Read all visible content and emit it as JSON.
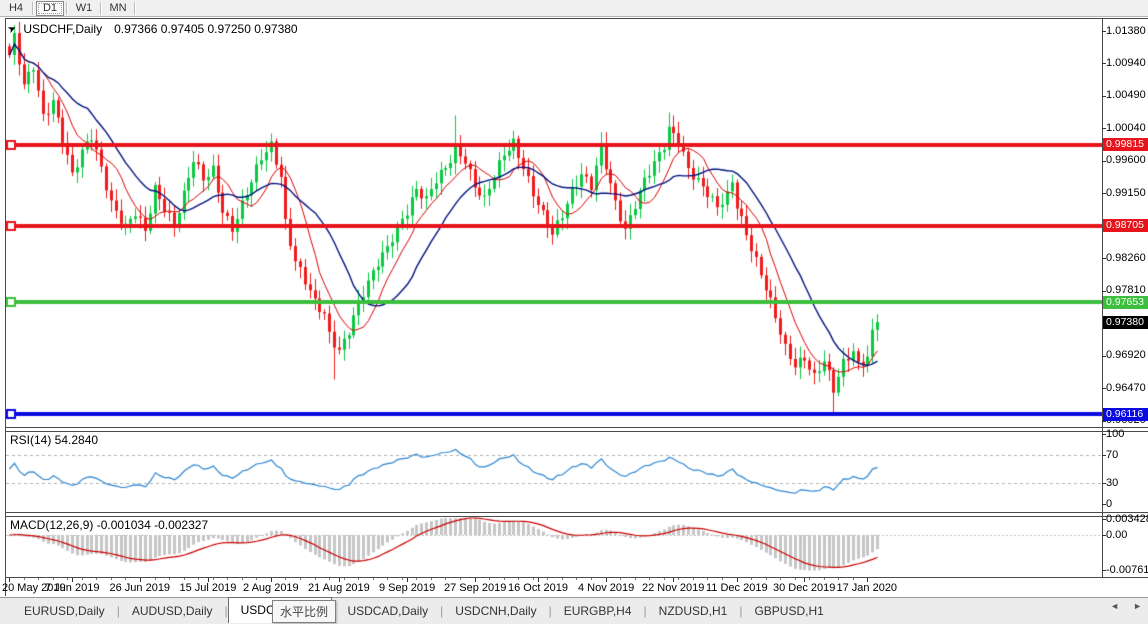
{
  "toolbar": {
    "timeframes": [
      {
        "label": "H4",
        "active": false
      },
      {
        "label": "D1",
        "active": true
      },
      {
        "label": "W1",
        "active": false
      },
      {
        "label": "MN",
        "active": false
      }
    ]
  },
  "chart": {
    "title": "USDCHF,Daily",
    "ohlc_text": "0.97366 0.97405 0.97250 0.97380",
    "cursor_icon": "➤",
    "price_axis_ticks": [
      "1.01380",
      "1.00940",
      "1.00490",
      "1.00040",
      "0.99600",
      "0.99150",
      "0.98260",
      "0.97810",
      "0.96920",
      "0.96470",
      "0.96020"
    ],
    "price_axis_tags": [
      {
        "text": "0.99815",
        "color": "#e8141b"
      },
      {
        "text": "0.98705",
        "color": "#e8141b"
      },
      {
        "text": "0.97653",
        "color": "#3cbf3c"
      },
      {
        "text": "0.97380",
        "color": "#000000"
      },
      {
        "text": "0.96116",
        "color": "#0a0ae0"
      }
    ]
  },
  "rsi_pane": {
    "label": "RSI(14) 54.2840",
    "axis_ticks": [
      "100",
      "70",
      "30",
      "0"
    ]
  },
  "macd_pane": {
    "label": "MACD(12,26,9) -0.001034 -0.002327",
    "axis_ticks": [
      "0.003428",
      "0.00",
      "-0.007615"
    ]
  },
  "time_axis": {
    "labels": [
      "20 May 2019",
      "7 Jun 2019",
      "26 Jun 2019",
      "15 Jul 2019",
      "2 Aug 2019",
      "21 Aug 2019",
      "9 Sep 2019",
      "27 Sep 2019",
      "16 Oct 2019",
      "4 Nov 2019",
      "22 Nov 2019",
      "11 Dec 2019",
      "30 Dec 2019",
      "17 Jan 2020"
    ]
  },
  "tabs": {
    "items": [
      {
        "label": "EURUSD,Daily",
        "active": false
      },
      {
        "label": "AUDUSD,Daily",
        "active": false
      },
      {
        "label": "USDCHF,Daily",
        "active": true
      },
      {
        "label": "USDCAD,Daily",
        "active": false
      },
      {
        "label": "USDCNH,Daily",
        "active": false
      },
      {
        "label": "EURGBP,H4",
        "active": false
      },
      {
        "label": "NZDUSD,H1",
        "active": false
      },
      {
        "label": "GBPUSD,H1",
        "active": false
      }
    ],
    "scroll_left_icon": "◄",
    "scroll_right_icon": "►"
  },
  "tooltip": {
    "text": "水平比例"
  },
  "chart_data": {
    "type": "candlestick",
    "symbol": "USDCHF",
    "timeframe": "Daily",
    "title": "USDCHF,Daily",
    "displayed_ohlc": {
      "open": 0.97366,
      "high": 0.97405,
      "low": 0.9725,
      "close": 0.9738
    },
    "y_axis": {
      "min": 0.9602,
      "max": 1.0138,
      "ticks": [
        1.0138,
        1.0094,
        1.0049,
        1.0004,
        0.996,
        0.9915,
        0.9826,
        0.9781,
        0.9692,
        0.9647,
        0.9602
      ]
    },
    "x_axis": {
      "tick_labels": [
        "20 May 2019",
        "7 Jun 2019",
        "26 Jun 2019",
        "15 Jul 2019",
        "2 Aug 2019",
        "21 Aug 2019",
        "9 Sep 2019",
        "27 Sep 2019",
        "16 Oct 2019",
        "4 Nov 2019",
        "22 Nov 2019",
        "11 Dec 2019",
        "30 Dec 2019",
        "17 Jan 2020"
      ],
      "tick_indices": [
        0,
        13,
        27,
        41,
        54,
        68,
        82,
        96,
        109,
        123,
        137,
        150,
        164,
        177
      ]
    },
    "num_candles": 180,
    "close_waypoints": [
      [
        0,
        1.0105
      ],
      [
        1,
        1.0128
      ],
      [
        3,
        1.006
      ],
      [
        5,
        1.0088
      ],
      [
        7,
        1.0022
      ],
      [
        9,
        1.0045
      ],
      [
        11,
        0.9992
      ],
      [
        13,
        0.9938
      ],
      [
        15,
        0.9968
      ],
      [
        17,
        0.9992
      ],
      [
        19,
        0.9952
      ],
      [
        21,
        0.9905
      ],
      [
        24,
        0.9868
      ],
      [
        26,
        0.9885
      ],
      [
        28,
        0.986
      ],
      [
        30,
        0.9922
      ],
      [
        32,
        0.9898
      ],
      [
        34,
        0.9875
      ],
      [
        36,
        0.9912
      ],
      [
        38,
        0.9958
      ],
      [
        40,
        0.9932
      ],
      [
        42,
        0.9948
      ],
      [
        44,
        0.9895
      ],
      [
        46,
        0.9868
      ],
      [
        48,
        0.9898
      ],
      [
        50,
        0.9928
      ],
      [
        52,
        0.9962
      ],
      [
        54,
        0.9982
      ],
      [
        56,
        0.9942
      ],
      [
        57,
        0.9878
      ],
      [
        59,
        0.9822
      ],
      [
        61,
        0.9792
      ],
      [
        63,
        0.9762
      ],
      [
        65,
        0.9748
      ],
      [
        66,
        0.9722
      ],
      [
        68,
        0.9702
      ],
      [
        70,
        0.9728
      ],
      [
        72,
        0.9762
      ],
      [
        74,
        0.9788
      ],
      [
        76,
        0.9818
      ],
      [
        78,
        0.9842
      ],
      [
        80,
        0.9872
      ],
      [
        82,
        0.9892
      ],
      [
        84,
        0.9918
      ],
      [
        86,
        0.9902
      ],
      [
        88,
        0.9932
      ],
      [
        90,
        0.9952
      ],
      [
        92,
        0.9978
      ],
      [
        94,
        0.9962
      ],
      [
        96,
        0.9922
      ],
      [
        98,
        0.9902
      ],
      [
        100,
        0.9938
      ],
      [
        102,
        0.9972
      ],
      [
        104,
        0.9988
      ],
      [
        106,
        0.9952
      ],
      [
        108,
        0.9912
      ],
      [
        110,
        0.9882
      ],
      [
        112,
        0.9858
      ],
      [
        114,
        0.9888
      ],
      [
        116,
        0.9922
      ],
      [
        118,
        0.9942
      ],
      [
        120,
        0.9922
      ],
      [
        122,
        0.9975
      ],
      [
        125,
        0.9902
      ],
      [
        127,
        0.9868
      ],
      [
        129,
        0.9902
      ],
      [
        131,
        0.9932
      ],
      [
        133,
        0.9952
      ],
      [
        135,
        0.9978
      ],
      [
        136,
        1.0002
      ],
      [
        138,
        0.9992
      ],
      [
        140,
        0.9952
      ],
      [
        142,
        0.9932
      ],
      [
        144,
        0.9912
      ],
      [
        146,
        0.9892
      ],
      [
        148,
        0.9912
      ],
      [
        149,
        0.9932
      ],
      [
        150,
        0.9902
      ],
      [
        152,
        0.9862
      ],
      [
        154,
        0.9822
      ],
      [
        156,
        0.9782
      ],
      [
        158,
        0.9742
      ],
      [
        160,
        0.9702
      ],
      [
        162,
        0.9682
      ],
      [
        164,
        0.9692
      ],
      [
        166,
        0.9662
      ],
      [
        168,
        0.9682
      ],
      [
        170,
        0.9642
      ],
      [
        172,
        0.9682
      ],
      [
        174,
        0.9702
      ],
      [
        175,
        0.9682
      ],
      [
        177,
        0.9692
      ],
      [
        178,
        0.9722
      ],
      [
        179,
        0.9738
      ]
    ],
    "wick_spikes": [
      {
        "index": 1,
        "high": 1.0138
      },
      {
        "index": 67,
        "low": 0.9659
      },
      {
        "index": 92,
        "high": 1.0022
      },
      {
        "index": 136,
        "high": 1.0026
      },
      {
        "index": 170,
        "low": 0.9613
      },
      {
        "index": 179,
        "close": 0.9738,
        "high": 0.97405,
        "low": 0.9725
      }
    ],
    "horizontal_levels": [
      {
        "price": 0.99815,
        "color": "#e8141b"
      },
      {
        "price": 0.98705,
        "color": "#e8141b"
      },
      {
        "price": 0.97653,
        "color": "#3cbf3c"
      },
      {
        "price": 0.96116,
        "color": "#0a0ae0"
      }
    ],
    "current_price": 0.9738,
    "moving_averages": [
      {
        "type": "sma",
        "period": 8,
        "color": "#d40000"
      },
      {
        "type": "sma",
        "period": 17,
        "color": "#00137f"
      }
    ],
    "rsi": {
      "period": 14,
      "value": 54.284,
      "levels": [
        70,
        30
      ],
      "range": [
        0,
        100
      ],
      "color": "#2e86d0",
      "axis_ticks": [
        100,
        70,
        30,
        0
      ]
    },
    "macd": {
      "fast": 12,
      "slow": 26,
      "signal": 9,
      "values": [
        -0.001034,
        -0.002327
      ],
      "axis_ticks": [
        0.003428,
        0.0,
        -0.007615
      ],
      "range": [
        -0.007615,
        0.003428
      ],
      "histogram_color": "#c6c6c6",
      "signal_color": "#cc0000"
    },
    "candle_colors": {
      "bull": "#0cc944",
      "bear": "#ef1c1c"
    }
  }
}
